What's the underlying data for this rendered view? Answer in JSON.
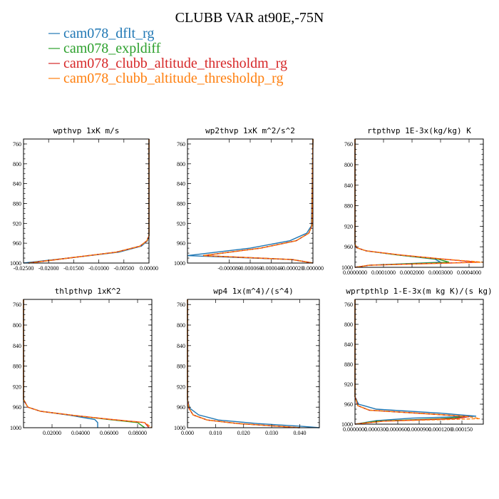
{
  "figure": {
    "title": "CLUBB VAR at90E,-75N",
    "legend": [
      {
        "label": "cam078_dflt_rg",
        "color": "#1f77b4"
      },
      {
        "label": "cam078_expldiff",
        "color": "#2ca02c"
      },
      {
        "label": "cam078_clubb_altitude_thresholdm_rg",
        "color": "#d62728"
      },
      {
        "label": "cam078_clubb_altitude_thresholdp_rg",
        "color": "#ff7f0e"
      }
    ]
  },
  "chart_data": [
    {
      "type": "line",
      "title": "wpthvp  1xK m/s",
      "xlim": [
        -0.025,
        0.0
      ],
      "ylim": [
        1000,
        750
      ],
      "xticks": [
        -0.025,
        -0.02,
        -0.015,
        -0.01,
        -0.005,
        0.0
      ],
      "xticklabels": [
        "-0.02500",
        "-0.02000",
        "-0.01500",
        "-0.01000",
        "-0.00500",
        "0.00000"
      ],
      "yticks": [
        760,
        800,
        840,
        880,
        920,
        960,
        1000
      ],
      "yticklabels": [
        "760",
        "800",
        "840",
        "880",
        "920",
        "960",
        "1000"
      ],
      "series": [
        {
          "name": "cam078_dflt_rg",
          "color": "#1f77b4",
          "x": [
            0.0,
            0.0,
            -0.0003,
            -0.0015,
            -0.006,
            -0.016,
            -0.025
          ],
          "y": [
            750,
            945,
            955,
            966,
            978,
            990,
            1000
          ]
        },
        {
          "name": "cam078_expldiff",
          "color": "#2ca02c",
          "x": [
            0.0,
            0.0,
            -0.0004,
            -0.0018,
            -0.0065,
            -0.016,
            -0.024
          ],
          "y": [
            750,
            945,
            955,
            966,
            978,
            990,
            1000
          ]
        },
        {
          "name": "cam078_clubb_altitude_thresholdm_rg",
          "color": "#d62728",
          "x": [
            0.0,
            0.0,
            -0.0004,
            -0.0018,
            -0.0065,
            -0.016,
            -0.024
          ],
          "y": [
            750,
            945,
            955,
            966,
            978,
            990,
            1000
          ]
        },
        {
          "name": "cam078_clubb_altitude_thresholdp_rg",
          "color": "#ff7f0e",
          "x": [
            0.0,
            0.0,
            -0.0004,
            -0.0018,
            -0.0065,
            -0.016,
            -0.024
          ],
          "y": [
            750,
            945,
            955,
            966,
            978,
            990,
            1000
          ]
        }
      ]
    },
    {
      "type": "line",
      "title": "wp2thvp  1xK m^2/s^2",
      "xlim": [
        -0.00012,
        0.0
      ],
      "ylim": [
        1000,
        750
      ],
      "xticks": [
        -8e-05,
        -6e-05,
        -4e-05,
        -2e-05,
        0.0
      ],
      "xticklabels": [
        "-0.000080",
        "-0.000060",
        "-0.000040",
        "-0.000020",
        "0.000000"
      ],
      "yticks": [
        760,
        800,
        840,
        880,
        920,
        960,
        1000
      ],
      "yticklabels": [
        "760",
        "800",
        "840",
        "880",
        "920",
        "960",
        "1000"
      ],
      "series": [
        {
          "name": "cam078_dflt_rg",
          "color": "#1f77b4",
          "x": [
            0.0,
            -1.5e-06,
            -6e-06,
            -2.2e-05,
            -6e-05,
            -0.00012,
            -2e-05,
            0.0
          ],
          "y": [
            750,
            925,
            940,
            955,
            970,
            985,
            993,
            1000
          ]
        },
        {
          "name": "cam078_expldiff",
          "color": "#2ca02c",
          "x": [
            0.0,
            -1e-06,
            -4e-06,
            -1.6e-05,
            -5e-05,
            -0.000105,
            -2e-05,
            0.0
          ],
          "y": [
            750,
            925,
            940,
            955,
            970,
            985,
            993,
            1000
          ]
        },
        {
          "name": "cam078_clubb_altitude_thresholdm_rg",
          "color": "#d62728",
          "x": [
            0.0,
            -1e-06,
            -4e-06,
            -1.6e-05,
            -5e-05,
            -0.000105,
            -2e-05,
            0.0
          ],
          "y": [
            750,
            925,
            940,
            955,
            970,
            985,
            993,
            1000
          ]
        },
        {
          "name": "cam078_clubb_altitude_thresholdp_rg",
          "color": "#ff7f0e",
          "x": [
            0.0,
            -1e-06,
            -4e-06,
            -1.6e-05,
            -5e-05,
            -0.000105,
            -2e-05,
            0.0
          ],
          "y": [
            750,
            925,
            940,
            955,
            970,
            985,
            993,
            1000
          ]
        }
      ]
    },
    {
      "type": "line",
      "title": "rtpthvp  1E-3x(kg/kg) K",
      "xlim": [
        0.0,
        0.00045
      ],
      "ylim": [
        1000,
        750
      ],
      "xticks": [
        0.0,
        0.0001,
        0.0002,
        0.0003,
        0.0004
      ],
      "xticklabels": [
        "0.0000000",
        "0.0001000",
        "0.0002000",
        "0.0003000",
        "0.0004000"
      ],
      "yticks": [
        760,
        800,
        840,
        880,
        920,
        960,
        1000
      ],
      "yticklabels": [
        "760",
        "800",
        "840",
        "880",
        "920",
        "960",
        "1000"
      ],
      "series": [
        {
          "name": "cam078_dflt_rg",
          "color": "#1f77b4",
          "x": [
            0.0,
            0.0,
            5e-06,
            4e-05,
            0.00015,
            0.00028,
            0.0003,
            5e-05,
            0.0
          ],
          "y": [
            750,
            955,
            962,
            968,
            976,
            984,
            990,
            996,
            1000
          ]
        },
        {
          "name": "cam078_expldiff",
          "color": "#2ca02c",
          "x": [
            0.0,
            0.0,
            6e-06,
            4e-05,
            0.00015,
            0.00029,
            0.00033,
            5e-05,
            0.0
          ],
          "y": [
            750,
            955,
            962,
            968,
            976,
            984,
            990,
            996,
            1000
          ]
        },
        {
          "name": "cam078_clubb_altitude_thresholdm_rg",
          "color": "#d62728",
          "x": [
            0.0,
            0.0,
            6e-06,
            4e-05,
            0.00016,
            0.00031,
            0.00043,
            5e-05,
            0.0
          ],
          "y": [
            750,
            955,
            962,
            968,
            976,
            984,
            990,
            996,
            1000
          ]
        },
        {
          "name": "cam078_clubb_altitude_thresholdp_rg",
          "color": "#ff7f0e",
          "x": [
            0.0,
            0.0,
            6e-06,
            4e-05,
            0.00016,
            0.00031,
            0.00045,
            5e-05,
            0.0
          ],
          "y": [
            750,
            955,
            962,
            968,
            976,
            984,
            990,
            996,
            1000
          ]
        }
      ]
    },
    {
      "type": "line",
      "title": "thlpthvp  1xK^2",
      "xlim": [
        0.0,
        0.09
      ],
      "ylim": [
        1000,
        750
      ],
      "xticks": [
        0.02,
        0.04,
        0.06,
        0.08
      ],
      "xticklabels": [
        "0.02000",
        "0.04000",
        "0.06000",
        "0.08000"
      ],
      "yticks": [
        760,
        800,
        840,
        880,
        920,
        960,
        1000
      ],
      "yticklabels": [
        "760",
        "800",
        "840",
        "880",
        "920",
        "960",
        "1000"
      ],
      "series": [
        {
          "name": "cam078_dflt_rg",
          "color": "#1f77b4",
          "x": [
            0.0,
            0.0,
            0.003,
            0.012,
            0.033,
            0.05,
            0.052,
            0.052
          ],
          "y": [
            750,
            945,
            960,
            968,
            976,
            984,
            990,
            1000
          ]
        },
        {
          "name": "cam078_expldiff",
          "color": "#2ca02c",
          "x": [
            0.0,
            0.0,
            0.003,
            0.012,
            0.035,
            0.06,
            0.08,
            0.085
          ],
          "y": [
            750,
            945,
            960,
            968,
            976,
            984,
            990,
            1000
          ]
        },
        {
          "name": "cam078_clubb_altitude_thresholdm_rg",
          "color": "#d62728",
          "x": [
            0.0,
            0.0,
            0.003,
            0.012,
            0.035,
            0.062,
            0.085,
            0.088
          ],
          "y": [
            750,
            945,
            960,
            968,
            976,
            984,
            990,
            1000
          ]
        },
        {
          "name": "cam078_clubb_altitude_thresholdp_rg",
          "color": "#ff7f0e",
          "x": [
            0.0,
            0.0,
            0.003,
            0.012,
            0.035,
            0.062,
            0.085,
            0.09
          ],
          "y": [
            750,
            945,
            960,
            968,
            976,
            984,
            990,
            1000
          ]
        }
      ]
    },
    {
      "type": "line",
      "title": "wp4  1x(m^4)/(s^4)",
      "xlim": [
        0.0,
        0.047
      ],
      "ylim": [
        1000,
        750
      ],
      "xticks": [
        0.0,
        0.01,
        0.02,
        0.03,
        0.04
      ],
      "xticklabels": [
        "0.000",
        "0.010",
        "0.020",
        "0.030",
        "0.040"
      ],
      "yticks": [
        760,
        800,
        840,
        880,
        920,
        960,
        1000
      ],
      "yticklabels": [
        "760",
        "800",
        "840",
        "880",
        "920",
        "960",
        "1000"
      ],
      "series": [
        {
          "name": "cam078_dflt_rg",
          "color": "#1f77b4",
          "x": [
            0.0,
            0.0,
            0.0008,
            0.004,
            0.011,
            0.025,
            0.04,
            0.047
          ],
          "y": [
            750,
            945,
            962,
            975,
            985,
            992,
            997,
            1000
          ]
        },
        {
          "name": "cam078_expldiff",
          "color": "#2ca02c",
          "x": [
            0.0,
            0.0,
            0.0005,
            0.002,
            0.007,
            0.018,
            0.032,
            0.04
          ],
          "y": [
            750,
            945,
            962,
            975,
            985,
            992,
            997,
            1000
          ]
        },
        {
          "name": "cam078_clubb_altitude_thresholdm_rg",
          "color": "#d62728",
          "x": [
            0.0,
            0.0,
            0.0005,
            0.002,
            0.007,
            0.018,
            0.032,
            0.04
          ],
          "y": [
            750,
            945,
            962,
            975,
            985,
            992,
            997,
            1000
          ]
        },
        {
          "name": "cam078_clubb_altitude_thresholdp_rg",
          "color": "#ff7f0e",
          "x": [
            0.0,
            0.0,
            0.0005,
            0.002,
            0.007,
            0.018,
            0.032,
            0.04
          ],
          "y": [
            750,
            945,
            962,
            975,
            985,
            992,
            997,
            1000
          ]
        }
      ]
    },
    {
      "type": "line",
      "title": "wprtpthlp  1-E-3x(m kg K)/(s kg)",
      "xlim": [
        0.0,
        0.00018
      ],
      "ylim": [
        1000,
        750
      ],
      "xticks": [
        0.0,
        3e-05,
        6e-05,
        9e-05,
        0.00012,
        0.00015
      ],
      "xticklabels": [
        "0.0000000",
        "0.0000300",
        "0.0000600",
        "0.0000900",
        "0.0001200",
        "0.000150"
      ],
      "yticks": [
        760,
        800,
        840,
        880,
        920,
        960,
        1000
      ],
      "yticklabels": [
        "760",
        "800",
        "840",
        "880",
        "920",
        "960",
        "1000"
      ],
      "series": [
        {
          "name": "cam078_dflt_rg",
          "color": "#1f77b4",
          "x": [
            0.0,
            0.0,
            5e-06,
            3e-05,
            0.00012,
            0.00017,
            8e-05,
            3e-05,
            0.0
          ],
          "y": [
            750,
            945,
            960,
            970,
            978,
            984,
            988,
            993,
            1000
          ]
        },
        {
          "name": "cam078_expldiff",
          "color": "#2ca02c",
          "x": [
            0.0,
            0.0,
            4e-06,
            2e-05,
            0.00011,
            0.00016,
            0.00012,
            3e-05,
            0.0
          ],
          "y": [
            750,
            945,
            963,
            972,
            980,
            985,
            989,
            994,
            1000
          ]
        },
        {
          "name": "cam078_clubb_altitude_thresholdm_rg",
          "color": "#d62728",
          "x": [
            0.0,
            0.0,
            4e-06,
            2e-05,
            0.00011,
            0.00016,
            0.00014,
            4e-05,
            0.0
          ],
          "y": [
            750,
            945,
            963,
            972,
            980,
            985,
            989,
            994,
            1000
          ]
        },
        {
          "name": "cam078_clubb_altitude_thresholdp_rg",
          "color": "#ff7f0e",
          "x": [
            0.0,
            0.0,
            4e-06,
            2e-05,
            0.00011,
            0.00016,
            0.000175,
            4e-05,
            0.0
          ],
          "y": [
            750,
            945,
            963,
            972,
            980,
            985,
            989,
            994,
            1000
          ]
        }
      ]
    }
  ]
}
